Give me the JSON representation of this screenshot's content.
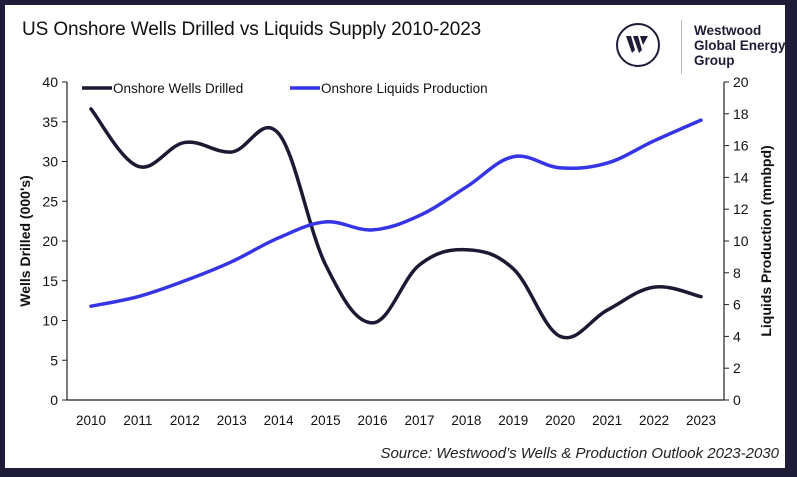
{
  "title": "US Onshore Wells Drilled vs Liquids Supply 2010-2023",
  "logo": {
    "icon": "westwood-w-logo-icon",
    "lines": [
      "Westwood",
      "Global Energy",
      "Group"
    ]
  },
  "source": "Source: Westwood’s Wells & Production Outlook 2023-2030",
  "colors": {
    "frame": "#1e1c36",
    "wells": "#1b1a33",
    "liquids": "#3535e6"
  },
  "chart_data": {
    "type": "line",
    "title": "US Onshore Wells Drilled vs Liquids Supply 2010-2023",
    "x": [
      "2010",
      "2011",
      "2012",
      "2013",
      "2014",
      "2015",
      "2016",
      "2017",
      "2018",
      "2019",
      "2020",
      "2021",
      "2022",
      "2023"
    ],
    "series": [
      {
        "name": "Onshore Wells Drilled",
        "axis": "left",
        "values": [
          36.6,
          29.4,
          32.4,
          31.2,
          33.5,
          17.0,
          9.7,
          17.0,
          18.9,
          16.5,
          8.0,
          11.3,
          14.2,
          13.0
        ]
      },
      {
        "name": "Onshore Liquids Production",
        "axis": "right",
        "values": [
          5.9,
          6.5,
          7.5,
          8.7,
          10.2,
          11.2,
          10.7,
          11.6,
          13.4,
          15.3,
          14.6,
          14.9,
          16.3,
          17.6
        ]
      }
    ],
    "ylabel": "Wells Drilled (000's)",
    "y2label": "Liquids Production (mmbpd)",
    "ylim": [
      0,
      40
    ],
    "y2lim": [
      0,
      20
    ],
    "yticks": [
      0,
      5,
      10,
      15,
      20,
      25,
      30,
      35,
      40
    ],
    "y2ticks": [
      0,
      2,
      4,
      6,
      8,
      10,
      12,
      14,
      16,
      18,
      20
    ],
    "grid": false,
    "legend": "top-left"
  }
}
